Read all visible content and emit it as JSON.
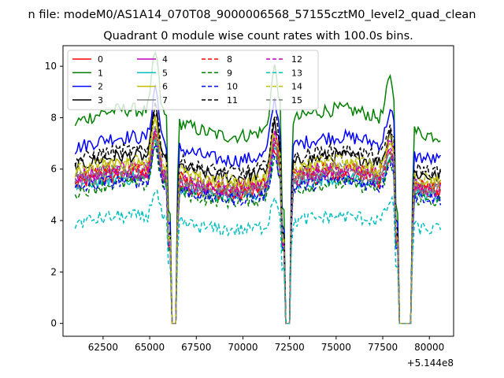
{
  "chart_data": {
    "type": "line",
    "suptitle": "n file: modeM0/AS1A14_070T08_9000006568_57155cztM0_level2_quad_clean",
    "title": "Quadrant 0 module wise count rates with 100.0s bins.",
    "xlabel": "",
    "ylabel": "",
    "x_offset_text": "+5.144e8",
    "xlim": [
      60350,
      81300
    ],
    "ylim": [
      -0.5,
      10.8
    ],
    "x_ticks": [
      62500,
      65000,
      67500,
      70000,
      72500,
      75000,
      77500,
      80000
    ],
    "x_tick_labels": [
      "62500",
      "65000",
      "67500",
      "70000",
      "72500",
      "75000",
      "77500",
      "80000"
    ],
    "y_ticks": [
      0,
      2,
      4,
      6,
      8,
      10
    ],
    "y_tick_labels": [
      "0",
      "2",
      "4",
      "6",
      "8",
      "10"
    ],
    "x_start": 61000,
    "bin_width": 100,
    "gaps": [
      [
        66150,
        66400
      ],
      [
        72250,
        72550
      ],
      [
        78350,
        79000
      ]
    ],
    "x_end": 80600,
    "legend": {
      "location": "upper left",
      "ncol": 4
    },
    "series": [
      {
        "name": "0",
        "color": "#ff0000",
        "style": "solid",
        "base": 5.4
      },
      {
        "name": "1",
        "color": "#008000",
        "style": "solid",
        "base": 7.8
      },
      {
        "name": "2",
        "color": "#0000ff",
        "style": "solid",
        "base": 6.8
      },
      {
        "name": "3",
        "color": "#000000",
        "style": "solid",
        "base": 6.1
      },
      {
        "name": "4",
        "color": "#bf00bf",
        "style": "solid",
        "base": 5.7
      },
      {
        "name": "5",
        "color": "#00bfbf",
        "style": "solid",
        "base": 5.3
      },
      {
        "name": "6",
        "color": "#bfbf00",
        "style": "solid",
        "base": 5.8
      },
      {
        "name": "7",
        "color": "#808080",
        "style": "solid",
        "base": 5.4
      },
      {
        "name": "8",
        "color": "#ff0000",
        "style": "dashed",
        "base": 5.6
      },
      {
        "name": "9",
        "color": "#008000",
        "style": "dashed",
        "base": 5.1
      },
      {
        "name": "10",
        "color": "#0000ff",
        "style": "dashed",
        "base": 5.2
      },
      {
        "name": "11",
        "color": "#000000",
        "style": "dashed",
        "base": 6.3
      },
      {
        "name": "12",
        "color": "#bf00bf",
        "style": "dashed",
        "base": 5.5
      },
      {
        "name": "13",
        "color": "#00bfbf",
        "style": "dashed",
        "base": 3.9
      },
      {
        "name": "14",
        "color": "#bfbf00",
        "style": "dashed",
        "base": 5.9
      },
      {
        "name": "15",
        "color": "#808080",
        "style": "dashed",
        "base": 5.6
      }
    ]
  }
}
